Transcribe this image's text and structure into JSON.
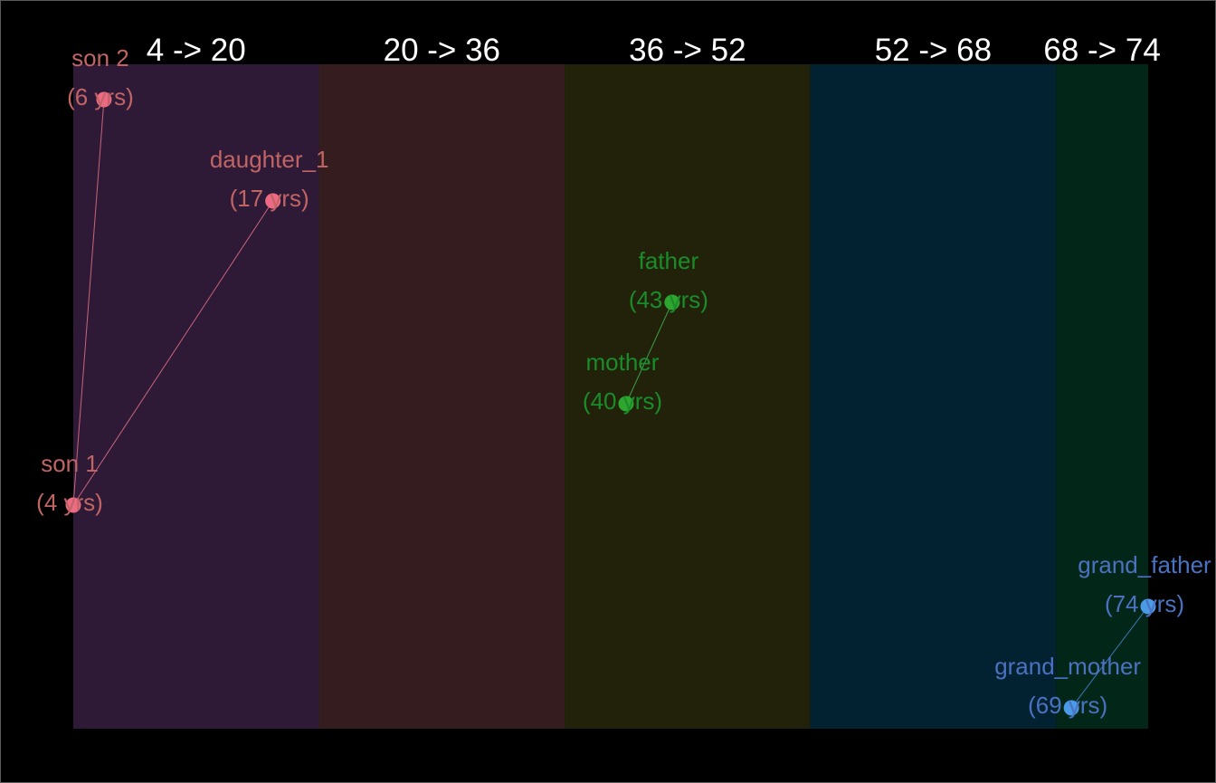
{
  "chart_data": {
    "type": "scatter",
    "title": "",
    "xlabel": "",
    "ylabel": "",
    "x_range": [
      4,
      74
    ],
    "bands": [
      {
        "label": "4 -> 20",
        "from": 4,
        "to": 20,
        "color": "#2e1a36"
      },
      {
        "label": "20 -> 36",
        "from": 20,
        "to": 36,
        "color": "#351c1e"
      },
      {
        "label": "36 -> 52",
        "from": 36,
        "to": 52,
        "color": "#22220a"
      },
      {
        "label": "52 -> 68",
        "from": 52,
        "to": 68,
        "color": "#022232"
      },
      {
        "label": "68 -> 74",
        "from": 68,
        "to": 74,
        "color": "#022618"
      }
    ],
    "groups": [
      {
        "point_color": "#ed6a84",
        "text_color": "#c06464",
        "line_color": "#c8647a",
        "hub": "son 1",
        "points": [
          {
            "name": "son 1",
            "age_label": "(4 yrs)",
            "age": 4,
            "row": 5
          },
          {
            "name": "son 2",
            "age_label": "(6 yrs)",
            "age": 6,
            "row": 1
          },
          {
            "name": "daughter_1",
            "age_label": "(17 yrs)",
            "age": 17,
            "row": 2
          }
        ]
      },
      {
        "point_color": "#2ea52e",
        "text_color": "#1a8c2a",
        "line_color": "#3aa04a",
        "hub": "mother",
        "points": [
          {
            "name": "mother",
            "age_label": "(40 yrs)",
            "age": 40,
            "row": 4
          },
          {
            "name": "father",
            "age_label": "(43 yrs)",
            "age": 43,
            "row": 3
          }
        ]
      },
      {
        "point_color": "#4a9ae8",
        "text_color": "#4a72c0",
        "line_color": "#3a7ab8",
        "hub": "grand_mother",
        "points": [
          {
            "name": "grand_mother",
            "age_label": "(69 yrs)",
            "age": 69,
            "row": 7
          },
          {
            "name": "grand_father",
            "age_label": "(74 yrs)",
            "age": 74,
            "row": 6
          }
        ]
      }
    ]
  }
}
